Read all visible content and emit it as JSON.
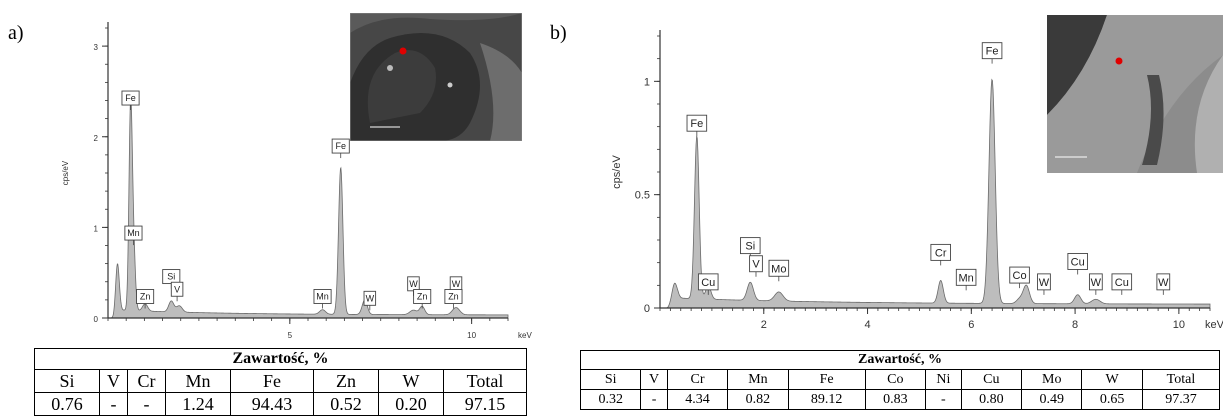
{
  "panels": [
    {
      "letter": "a)",
      "spectrum": {
        "type": "area",
        "ylabel": "cps/eV",
        "xunit": "keV",
        "xlim": [
          0,
          11
        ],
        "ylim": [
          0,
          3.2
        ],
        "x_ticks": [
          5,
          10
        ],
        "y_ticks": [
          0,
          1,
          2,
          3
        ],
        "baseline": 0.06,
        "peaks": [
          {
            "x": 0.26,
            "h": 0.55,
            "w": 0.05
          },
          {
            "x": 0.62,
            "h": 2.15,
            "w": 0.045
          },
          {
            "x": 0.7,
            "h": 0.7,
            "w": 0.05
          },
          {
            "x": 1.02,
            "h": 0.08,
            "w": 0.07
          },
          {
            "x": 1.74,
            "h": 0.12,
            "w": 0.07
          },
          {
            "x": 1.96,
            "h": 0.07,
            "w": 0.08
          },
          {
            "x": 5.9,
            "h": 0.05,
            "w": 0.08
          },
          {
            "x": 6.4,
            "h": 1.62,
            "w": 0.06
          },
          {
            "x": 7.06,
            "h": 0.16,
            "w": 0.07
          },
          {
            "x": 8.4,
            "h": 0.05,
            "w": 0.1
          },
          {
            "x": 8.64,
            "h": 0.09,
            "w": 0.07
          },
          {
            "x": 9.57,
            "h": 0.08,
            "w": 0.1
          }
        ],
        "labels": [
          {
            "text": "Fe",
            "x": 0.62,
            "y": 2.35
          },
          {
            "text": "Mn",
            "x": 0.7,
            "y": 0.86
          },
          {
            "text": "Si",
            "x": 1.74,
            "y": 0.38
          },
          {
            "text": "V",
            "x": 1.9,
            "y": 0.24
          },
          {
            "text": "Zn",
            "x": 1.02,
            "y": 0.16
          },
          {
            "text": "Fe",
            "x": 6.4,
            "y": 1.82
          },
          {
            "text": "Mn",
            "x": 5.9,
            "y": 0.16
          },
          {
            "text": "W",
            "x": 7.2,
            "y": 0.14
          },
          {
            "text": "W",
            "x": 8.4,
            "y": 0.3
          },
          {
            "text": "Zn",
            "x": 8.64,
            "y": 0.16
          },
          {
            "text": "W",
            "x": 9.57,
            "y": 0.3
          },
          {
            "text": "Zn",
            "x": 9.5,
            "y": 0.16
          }
        ]
      },
      "table": {
        "title": "Zawartość, %",
        "headers": [
          "Si",
          "V",
          "Cr",
          "Mn",
          "Fe",
          "Zn",
          "W",
          "Total"
        ],
        "values": [
          "0.76",
          "-",
          "-",
          "1.24",
          "94.43",
          "0.52",
          "0.20",
          "97.15"
        ]
      }
    },
    {
      "letter": "b)",
      "spectrum": {
        "type": "area",
        "ylabel": "cps/eV",
        "xunit": "keV",
        "xlim": [
          0,
          10.6
        ],
        "ylim": [
          0,
          1.2
        ],
        "x_ticks": [
          2,
          4,
          6,
          8,
          10
        ],
        "y_ticks": [
          0,
          0.5,
          1
        ],
        "baseline": 0.03,
        "peaks": [
          {
            "x": 0.28,
            "h": 0.08,
            "w": 0.05
          },
          {
            "x": 0.71,
            "h": 0.72,
            "w": 0.045
          },
          {
            "x": 0.93,
            "h": 0.06,
            "w": 0.05
          },
          {
            "x": 1.74,
            "h": 0.08,
            "w": 0.06
          },
          {
            "x": 2.29,
            "h": 0.04,
            "w": 0.08
          },
          {
            "x": 5.41,
            "h": 0.1,
            "w": 0.05
          },
          {
            "x": 6.4,
            "h": 0.99,
            "w": 0.06
          },
          {
            "x": 6.93,
            "h": 0.02,
            "w": 0.06
          },
          {
            "x": 7.06,
            "h": 0.08,
            "w": 0.06
          },
          {
            "x": 8.05,
            "h": 0.04,
            "w": 0.06
          },
          {
            "x": 8.4,
            "h": 0.02,
            "w": 0.08
          }
        ],
        "labels": [
          {
            "text": "Fe",
            "x": 0.71,
            "y": 0.78
          },
          {
            "text": "Cu",
            "x": 0.93,
            "y": 0.08
          },
          {
            "text": "Si",
            "x": 1.74,
            "y": 0.24
          },
          {
            "text": "V",
            "x": 1.85,
            "y": 0.16
          },
          {
            "text": "Mo",
            "x": 2.29,
            "y": 0.14
          },
          {
            "text": "Cr",
            "x": 5.41,
            "y": 0.21
          },
          {
            "text": "Mn",
            "x": 5.9,
            "y": 0.1
          },
          {
            "text": "Fe",
            "x": 6.4,
            "y": 1.1
          },
          {
            "text": "Co",
            "x": 6.93,
            "y": 0.11
          },
          {
            "text": "W",
            "x": 7.4,
            "y": 0.08
          },
          {
            "text": "Cu",
            "x": 8.05,
            "y": 0.17
          },
          {
            "text": "W",
            "x": 8.4,
            "y": 0.08
          },
          {
            "text": "Cu",
            "x": 8.9,
            "y": 0.08
          },
          {
            "text": "W",
            "x": 9.7,
            "y": 0.08
          }
        ]
      },
      "table": {
        "title": "Zawartość, %",
        "headers": [
          "Si",
          "V",
          "Cr",
          "Mn",
          "Fe",
          "Co",
          "Ni",
          "Cu",
          "Mo",
          "W",
          "Total"
        ],
        "values": [
          "0.32",
          "-",
          "4.34",
          "0.82",
          "89.12",
          "0.83",
          "-",
          "0.80",
          "0.49",
          "0.65",
          "97.37"
        ]
      }
    }
  ]
}
